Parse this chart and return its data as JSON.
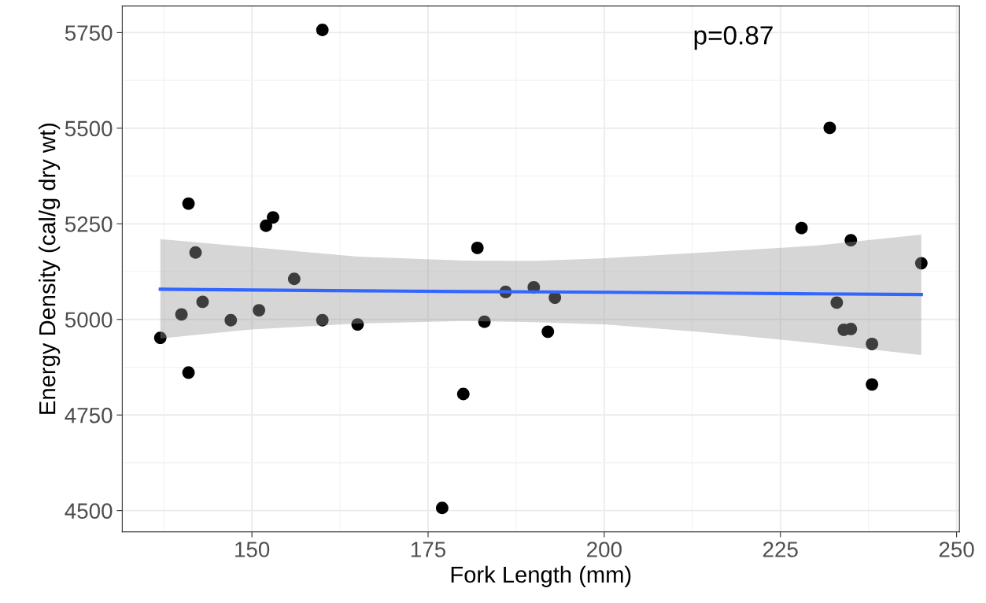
{
  "chart_data": {
    "type": "scatter",
    "xlabel": "Fork Length (mm)",
    "ylabel": "Energy Density (cal/g dry wt)",
    "annotations": [
      "p=0.87"
    ],
    "xlim": [
      131.6,
      250.4
    ],
    "xticks": [
      150,
      175,
      200,
      225,
      250
    ],
    "ylim": [
      4444.5,
      5819.5
    ],
    "yticks": [
      4500,
      4750,
      5000,
      5250,
      5500,
      5750
    ],
    "grid": true,
    "series": [
      {
        "marker": "circle",
        "color": "#000000",
        "x": [
          137,
          140,
          141,
          141,
          142,
          143,
          147,
          151,
          152,
          153,
          156,
          160,
          160,
          165,
          177,
          180,
          182,
          183,
          186,
          190,
          192,
          193,
          228,
          232,
          235,
          245,
          233,
          234,
          235,
          238,
          238
        ],
        "values": [
          4952,
          5013,
          5303,
          4861,
          5175,
          5046,
          4998,
          5024,
          5245,
          5267,
          5106,
          4998,
          5757,
          4987,
          4507,
          4805,
          5187,
          4994,
          5072,
          5084,
          4968,
          5057,
          5239,
          5501,
          5207,
          5147,
          5044,
          4973,
          4975,
          4936,
          4830
        ]
      },
      {
        "type": "line",
        "color": "#3366ff",
        "x": [
          137,
          150,
          165,
          180,
          190,
          200,
          215,
          230,
          245
        ],
        "values": [
          5079,
          5077,
          5075,
          5073,
          5072,
          5071,
          5069,
          5067,
          5065
        ],
        "lower": [
          4950,
          4974,
          4989,
          4996,
          4993,
          4987,
          4965,
          4938,
          4907
        ],
        "upper": [
          5210,
          5189,
          5164,
          5154,
          5153,
          5160,
          5176,
          5193,
          5222
        ]
      }
    ]
  }
}
